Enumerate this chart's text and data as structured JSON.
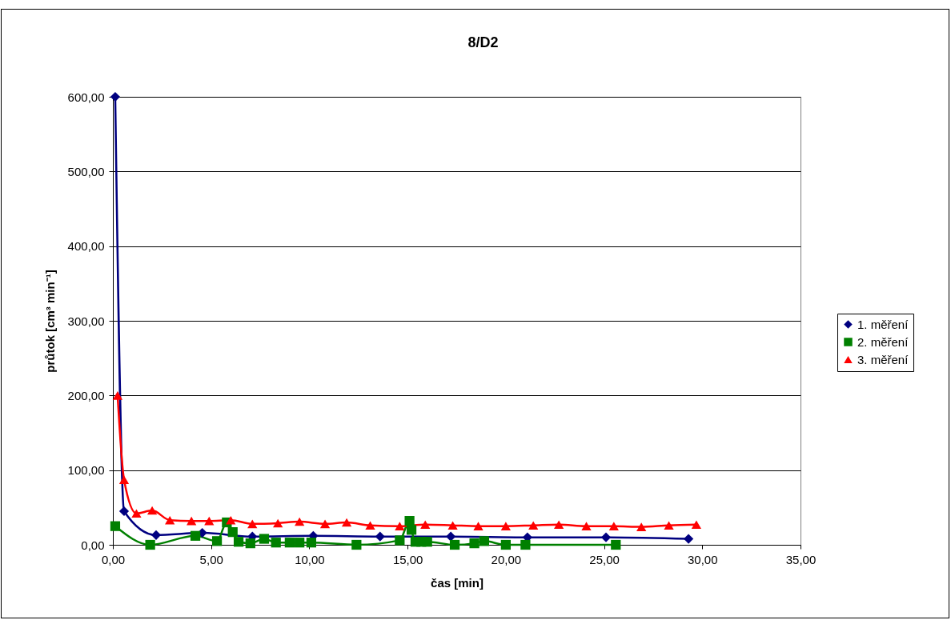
{
  "chart_data": {
    "type": "line",
    "title": "8/D2",
    "xlabel": "čas [min]",
    "ylabel": "průtok [cm³ min⁻¹]",
    "xlim": [
      0,
      35
    ],
    "xticks": [
      {
        "value": 0,
        "label": "0,00"
      },
      {
        "value": 5,
        "label": "5,00"
      },
      {
        "value": 10,
        "label": "10,00"
      },
      {
        "value": 15,
        "label": "15,00"
      },
      {
        "value": 20,
        "label": "20,00"
      },
      {
        "value": 25,
        "label": "25,00"
      },
      {
        "value": 30,
        "label": "30,00"
      },
      {
        "value": 35,
        "label": "35,00"
      }
    ],
    "ylim": [
      0,
      600
    ],
    "yticks": [
      {
        "value": 0,
        "label": "0,00"
      },
      {
        "value": 100,
        "label": "100,00"
      },
      {
        "value": 200,
        "label": "200,00"
      },
      {
        "value": 300,
        "label": "300,00"
      },
      {
        "value": 400,
        "label": "400,00"
      },
      {
        "value": 500,
        "label": "500,00"
      },
      {
        "value": 600,
        "label": "600,00"
      }
    ],
    "grid": "y",
    "legend": "right",
    "line_style": "solid",
    "series": [
      {
        "name": "1. měření",
        "color": "#000080",
        "marker": "diamond",
        "x": [
          0.12,
          0.57,
          2.2,
          4.55,
          7.1,
          10.2,
          13.6,
          17.2,
          21.1,
          25.1,
          29.3
        ],
        "values": [
          600,
          45,
          13,
          16,
          11,
          12,
          11,
          11,
          10,
          10,
          8
        ]
      },
      {
        "name": "2. měření",
        "color": "#008000",
        "marker": "square",
        "x": [
          0.12,
          1.9,
          4.2,
          5.3,
          5.8,
          6.1,
          6.4,
          7.0,
          7.7,
          8.3,
          9.0,
          9.5,
          10.1,
          12.4,
          14.6,
          15.1,
          15.2,
          15.4,
          15.7,
          16.0,
          17.4,
          18.4,
          18.9,
          20.0,
          21.0,
          25.6
        ],
        "values": [
          25,
          0,
          12,
          5,
          30,
          17,
          4,
          2,
          8,
          3,
          3,
          3,
          3,
          0,
          6,
          32,
          20,
          4,
          4,
          4,
          0,
          2,
          5,
          0,
          0,
          0
        ]
      },
      {
        "name": "3. měření",
        "color": "#ff0000",
        "marker": "triangle",
        "x": [
          0.24,
          0.57,
          1.2,
          2.0,
          2.9,
          4.0,
          4.9,
          6.0,
          7.1,
          8.4,
          9.5,
          10.8,
          11.9,
          13.1,
          14.6,
          15.9,
          17.3,
          18.6,
          20.0,
          21.4,
          22.7,
          24.1,
          25.5,
          26.9,
          28.3,
          29.7
        ],
        "values": [
          200,
          87,
          42,
          46,
          33,
          32,
          32,
          33,
          28,
          29,
          31,
          28,
          30,
          26,
          25,
          27,
          26,
          25,
          25,
          26,
          27,
          25,
          25,
          24,
          26,
          27
        ]
      }
    ]
  }
}
